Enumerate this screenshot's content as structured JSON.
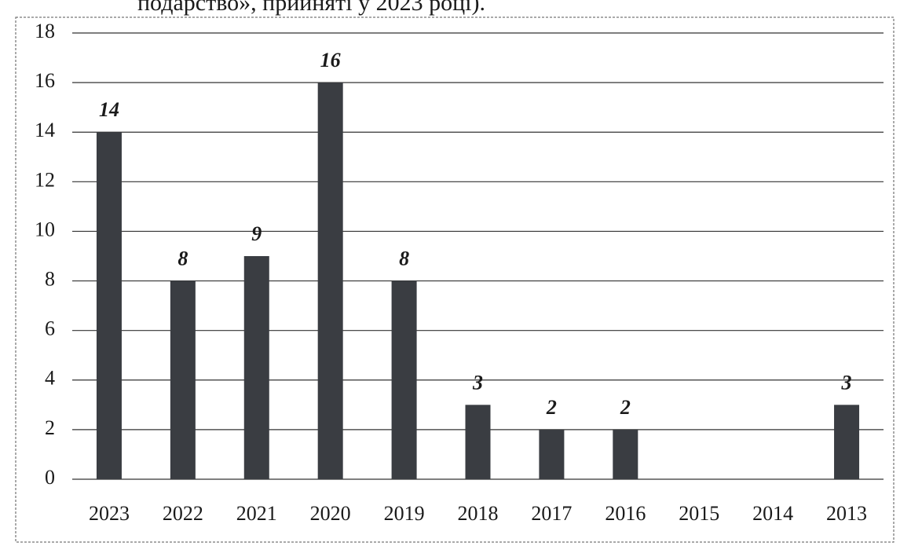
{
  "caption": "подарство», прийняті у 2023 році).",
  "chart_data": {
    "type": "bar",
    "categories": [
      "2023",
      "2022",
      "2021",
      "2020",
      "2019",
      "2018",
      "2017",
      "2016",
      "2015",
      "2014",
      "2013"
    ],
    "values": [
      14,
      8,
      9,
      16,
      8,
      3,
      2,
      2,
      null,
      null,
      3
    ],
    "color": "#3a3d42",
    "ylim": [
      0,
      18
    ],
    "yticks": [
      0,
      2,
      4,
      6,
      8,
      10,
      12,
      14,
      16,
      18
    ],
    "grid": true
  }
}
